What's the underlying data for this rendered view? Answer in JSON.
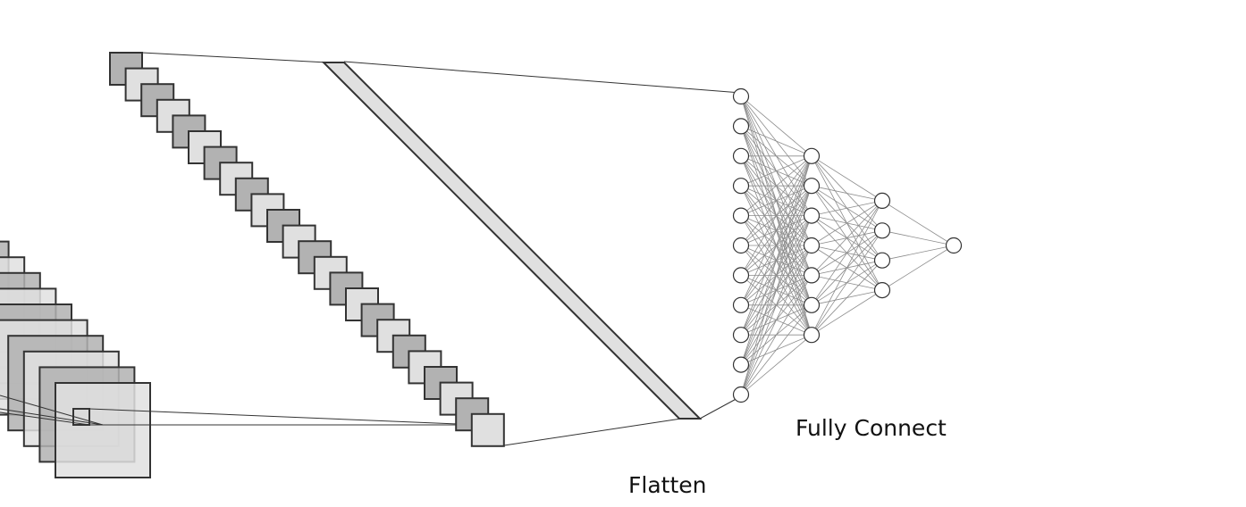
{
  "labels": {
    "fully_connect": "Fully Connect",
    "flatten": "Flatten"
  },
  "colors": {
    "dark_fill": "#b2b2b2",
    "light_fill": "#e0e0e0",
    "stroke": "#333333",
    "node_fill": "#ffffff",
    "edge": "#8c8c8c"
  },
  "network": {
    "layer_sizes": [
      11,
      7,
      4,
      1
    ]
  }
}
